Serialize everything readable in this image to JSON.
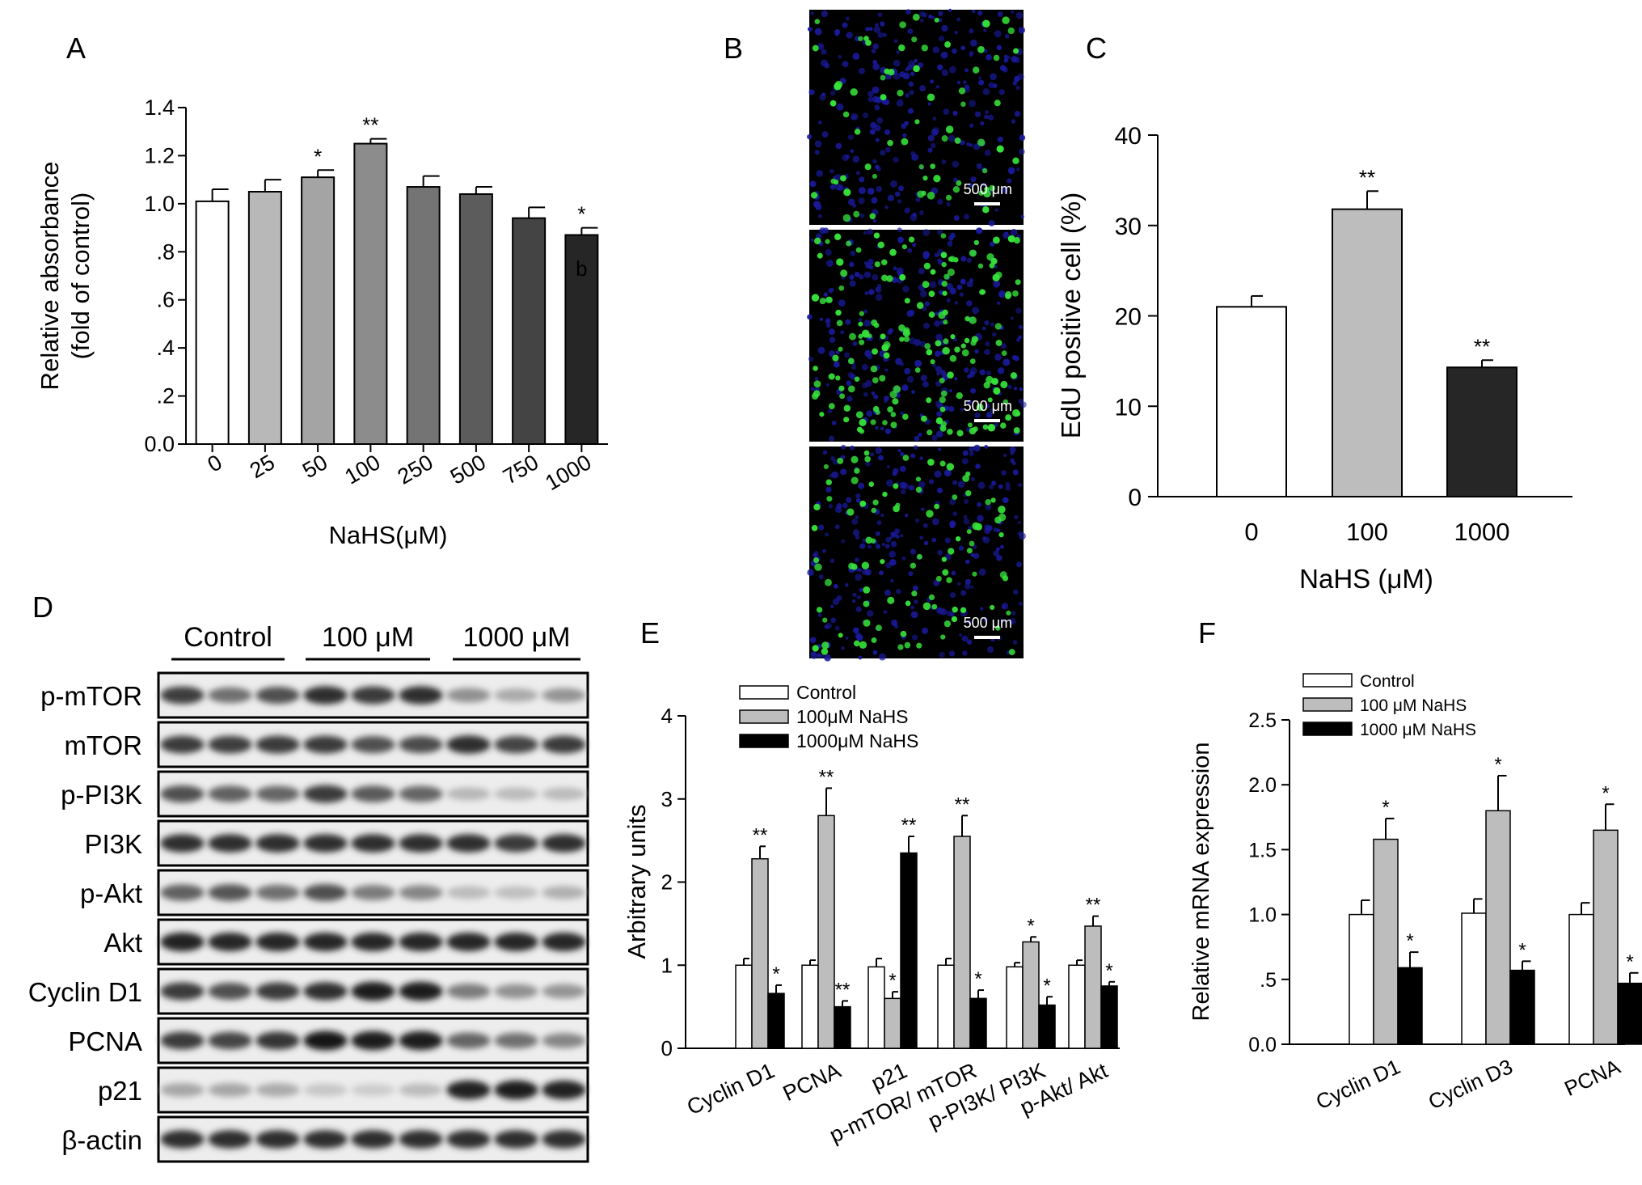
{
  "panels": {
    "A": "A",
    "B": "B",
    "C": "C",
    "D": "D",
    "E": "E",
    "F": "F"
  },
  "chart_data": [
    {
      "id": "A",
      "type": "bar",
      "xlabel": "NaHS(μM)",
      "ylabel": [
        "Relative absorbance",
        "(fold of control)"
      ],
      "ylim": [
        0,
        1.4
      ],
      "yticks": [
        "0.0",
        ".2",
        ".4",
        ".6",
        ".8",
        "1.0",
        "1.2",
        "1.4"
      ],
      "yticks_values": [
        0,
        0.2,
        0.4,
        0.6,
        0.8,
        1.0,
        1.2,
        1.4
      ],
      "categories": [
        "0",
        "25",
        "50",
        "100",
        "250",
        "500",
        "750",
        "1000"
      ],
      "values": [
        1.01,
        1.05,
        1.11,
        1.25,
        1.07,
        1.04,
        0.94,
        0.87
      ],
      "errors": [
        0.05,
        0.05,
        0.03,
        0.02,
        0.045,
        0.03,
        0.045,
        0.03
      ],
      "colors": [
        "#ffffff",
        "#b8b8b8",
        "#a4a4a4",
        "#8c8c8c",
        "#747474",
        "#5c5c5c",
        "#444444",
        "#262626"
      ],
      "annotations": [
        "",
        "",
        "*",
        "**",
        "",
        "",
        "",
        "*"
      ],
      "stray_label": "b"
    },
    {
      "id": "C",
      "type": "bar",
      "xlabel": "NaHS (μM)",
      "ylabel": "EdU positive cell (%)",
      "ylim": [
        0,
        40
      ],
      "yticks": [
        "0",
        "10",
        "20",
        "30",
        "40"
      ],
      "yticks_values": [
        0,
        10,
        20,
        30,
        40
      ],
      "categories": [
        "0",
        "100",
        "1000"
      ],
      "values": [
        21.0,
        31.8,
        14.3
      ],
      "errors": [
        1.2,
        2.0,
        0.8
      ],
      "colors": [
        "#ffffff",
        "#bdbdbd",
        "#262626"
      ],
      "annotations": [
        "",
        "**",
        "**"
      ]
    },
    {
      "id": "E",
      "type": "bar",
      "ylabel": "Arbitrary units",
      "ylim": [
        0,
        4
      ],
      "yticks": [
        "0",
        "1",
        "2",
        "3",
        "4"
      ],
      "yticks_values": [
        0,
        1,
        2,
        3,
        4
      ],
      "categories": [
        "Cyclin D1",
        "PCNA",
        "p21",
        "p-mTOR/ mTOR",
        "p-PI3K/ PI3K",
        "p-Akt/ Akt"
      ],
      "series": [
        {
          "name": "Control",
          "color": "#ffffff",
          "values": [
            1.0,
            1.0,
            0.98,
            1.0,
            0.98,
            1.0
          ],
          "errors": [
            0.08,
            0.06,
            0.1,
            0.08,
            0.05,
            0.06
          ],
          "annotations": [
            "",
            "",
            "",
            "",
            "",
            ""
          ]
        },
        {
          "name": "100μM NaHS",
          "color": "#bdbdbd",
          "values": [
            2.28,
            2.8,
            0.6,
            2.55,
            1.28,
            1.47
          ],
          "errors": [
            0.15,
            0.33,
            0.08,
            0.25,
            0.06,
            0.12
          ],
          "annotations": [
            "**",
            "**",
            "*",
            "**",
            "*",
            "**"
          ]
        },
        {
          "name": "1000μM NaHS",
          "color": "#000000",
          "values": [
            0.66,
            0.5,
            2.35,
            0.6,
            0.52,
            0.75
          ],
          "errors": [
            0.1,
            0.07,
            0.2,
            0.1,
            0.1,
            0.05
          ],
          "annotations": [
            "*",
            "**",
            "**",
            "*",
            "*",
            "*"
          ]
        }
      ]
    },
    {
      "id": "F",
      "type": "bar",
      "ylabel": "Relative mRNA expression",
      "ylim": [
        0,
        2.5
      ],
      "yticks": [
        "0.0",
        ".5",
        "1.0",
        "1.5",
        "2.0",
        "2.5"
      ],
      "yticks_values": [
        0,
        0.5,
        1.0,
        1.5,
        2.0,
        2.5
      ],
      "categories": [
        "Cyclin D1",
        "Cyclin D3",
        "PCNA"
      ],
      "series": [
        {
          "name": "Control",
          "color": "#ffffff",
          "values": [
            1.0,
            1.01,
            1.0
          ],
          "errors": [
            0.11,
            0.11,
            0.09
          ],
          "annotations": [
            "",
            "",
            ""
          ]
        },
        {
          "name": "100 μM NaHS",
          "color": "#bdbdbd",
          "values": [
            1.58,
            1.8,
            1.65
          ],
          "errors": [
            0.16,
            0.27,
            0.2
          ],
          "annotations": [
            "*",
            "*",
            "*"
          ]
        },
        {
          "name": "1000 μM NaHS",
          "color": "#000000",
          "values": [
            0.59,
            0.57,
            0.47
          ],
          "errors": [
            0.12,
            0.07,
            0.08
          ],
          "annotations": [
            "*",
            "*",
            "*"
          ]
        }
      ]
    }
  ],
  "microscopy": {
    "scale_bars": [
      "500 μm",
      "500 μm",
      "500 μm"
    ]
  },
  "western_blot": {
    "groups": [
      "Control",
      "100 μM",
      "1000 μM"
    ],
    "bands": [
      {
        "label": "p-mTOR",
        "intensity": [
          0.78,
          0.55,
          0.7,
          0.85,
          0.8,
          0.85,
          0.4,
          0.28,
          0.38
        ]
      },
      {
        "label": "mTOR",
        "intensity": [
          0.8,
          0.78,
          0.8,
          0.8,
          0.7,
          0.72,
          0.85,
          0.75,
          0.8
        ]
      },
      {
        "label": "p-PI3K",
        "intensity": [
          0.7,
          0.62,
          0.6,
          0.8,
          0.65,
          0.6,
          0.22,
          0.2,
          0.2
        ]
      },
      {
        "label": "PI3K",
        "intensity": [
          0.85,
          0.85,
          0.85,
          0.85,
          0.85,
          0.85,
          0.85,
          0.8,
          0.85
        ]
      },
      {
        "label": "p-Akt",
        "intensity": [
          0.62,
          0.68,
          0.55,
          0.7,
          0.5,
          0.45,
          0.2,
          0.18,
          0.25
        ]
      },
      {
        "label": "Akt",
        "intensity": [
          0.92,
          0.9,
          0.9,
          0.9,
          0.9,
          0.9,
          0.9,
          0.9,
          0.9
        ]
      },
      {
        "label": "Cyclin D1",
        "intensity": [
          0.8,
          0.7,
          0.8,
          0.85,
          0.95,
          0.95,
          0.5,
          0.4,
          0.38
        ]
      },
      {
        "label": "PCNA",
        "intensity": [
          0.8,
          0.75,
          0.82,
          0.98,
          0.95,
          0.95,
          0.6,
          0.55,
          0.45
        ]
      },
      {
        "label": "p21",
        "intensity": [
          0.3,
          0.3,
          0.28,
          0.15,
          0.12,
          0.2,
          0.92,
          0.95,
          0.92
        ]
      },
      {
        "label": "β-actin",
        "intensity": [
          0.85,
          0.85,
          0.85,
          0.85,
          0.85,
          0.85,
          0.85,
          0.85,
          0.85
        ]
      }
    ]
  }
}
